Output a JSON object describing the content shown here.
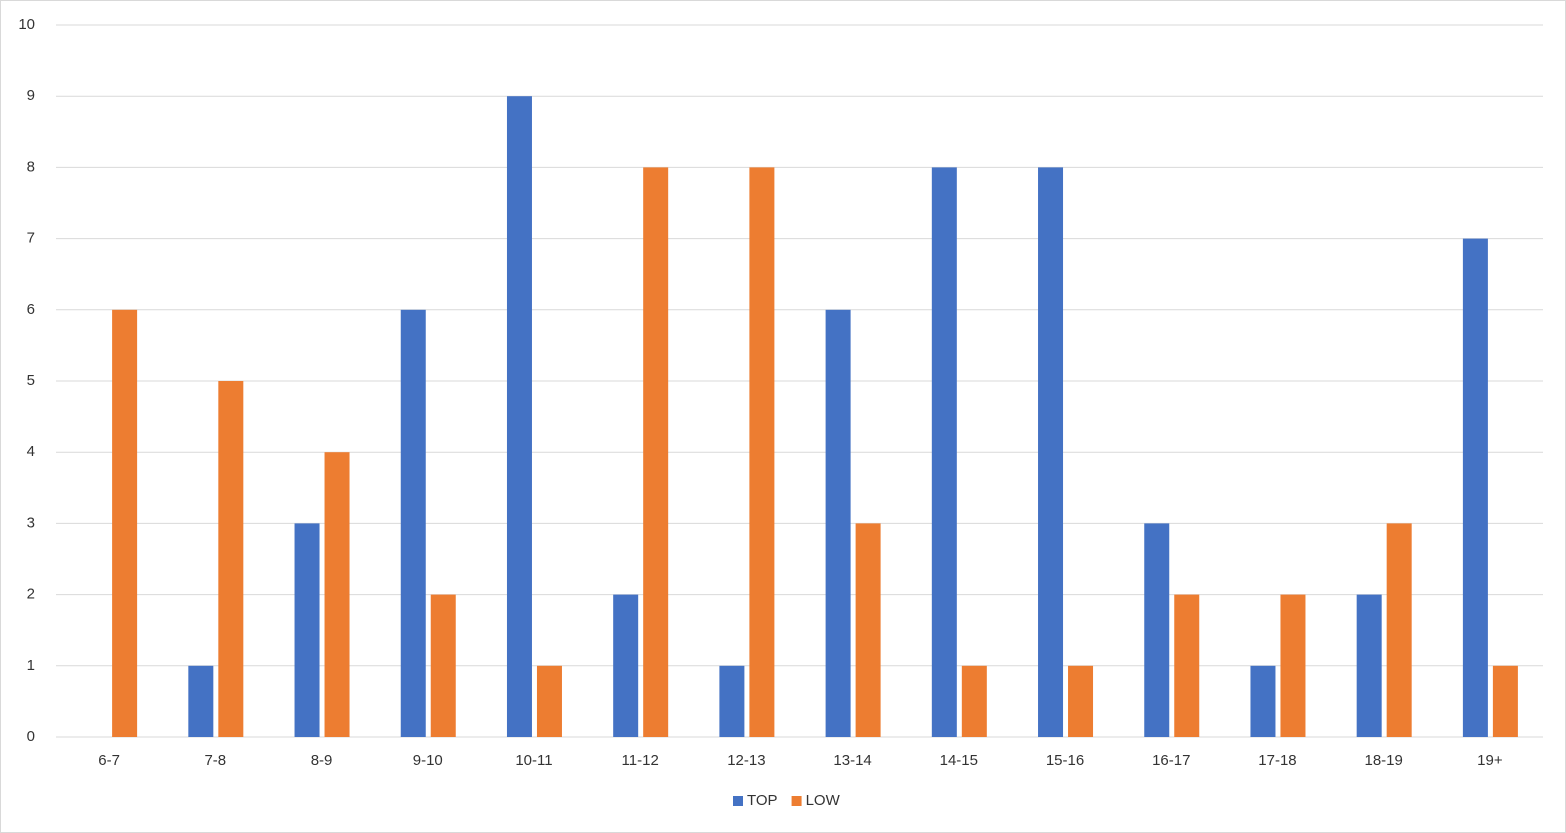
{
  "chart_data": {
    "type": "bar",
    "categories": [
      "6-7",
      "7-8",
      "8-9",
      "9-10",
      "10-11",
      "11-12",
      "12-13",
      "13-14",
      "14-15",
      "15-16",
      "16-17",
      "17-18",
      "18-19",
      "19+"
    ],
    "series": [
      {
        "name": "TOP",
        "color": "#4472c4",
        "values": [
          0,
          1,
          3,
          6,
          9,
          2,
          1,
          6,
          8,
          8,
          3,
          1,
          2,
          7
        ]
      },
      {
        "name": "LOW",
        "color": "#ed7d31",
        "values": [
          6,
          5,
          4,
          2,
          1,
          8,
          8,
          3,
          1,
          1,
          2,
          2,
          3,
          1
        ]
      }
    ],
    "ylim": [
      0,
      10
    ],
    "yticks": [
      0,
      1,
      2,
      3,
      4,
      5,
      6,
      7,
      8,
      9,
      10
    ],
    "grid": true,
    "legend": "bottom"
  }
}
